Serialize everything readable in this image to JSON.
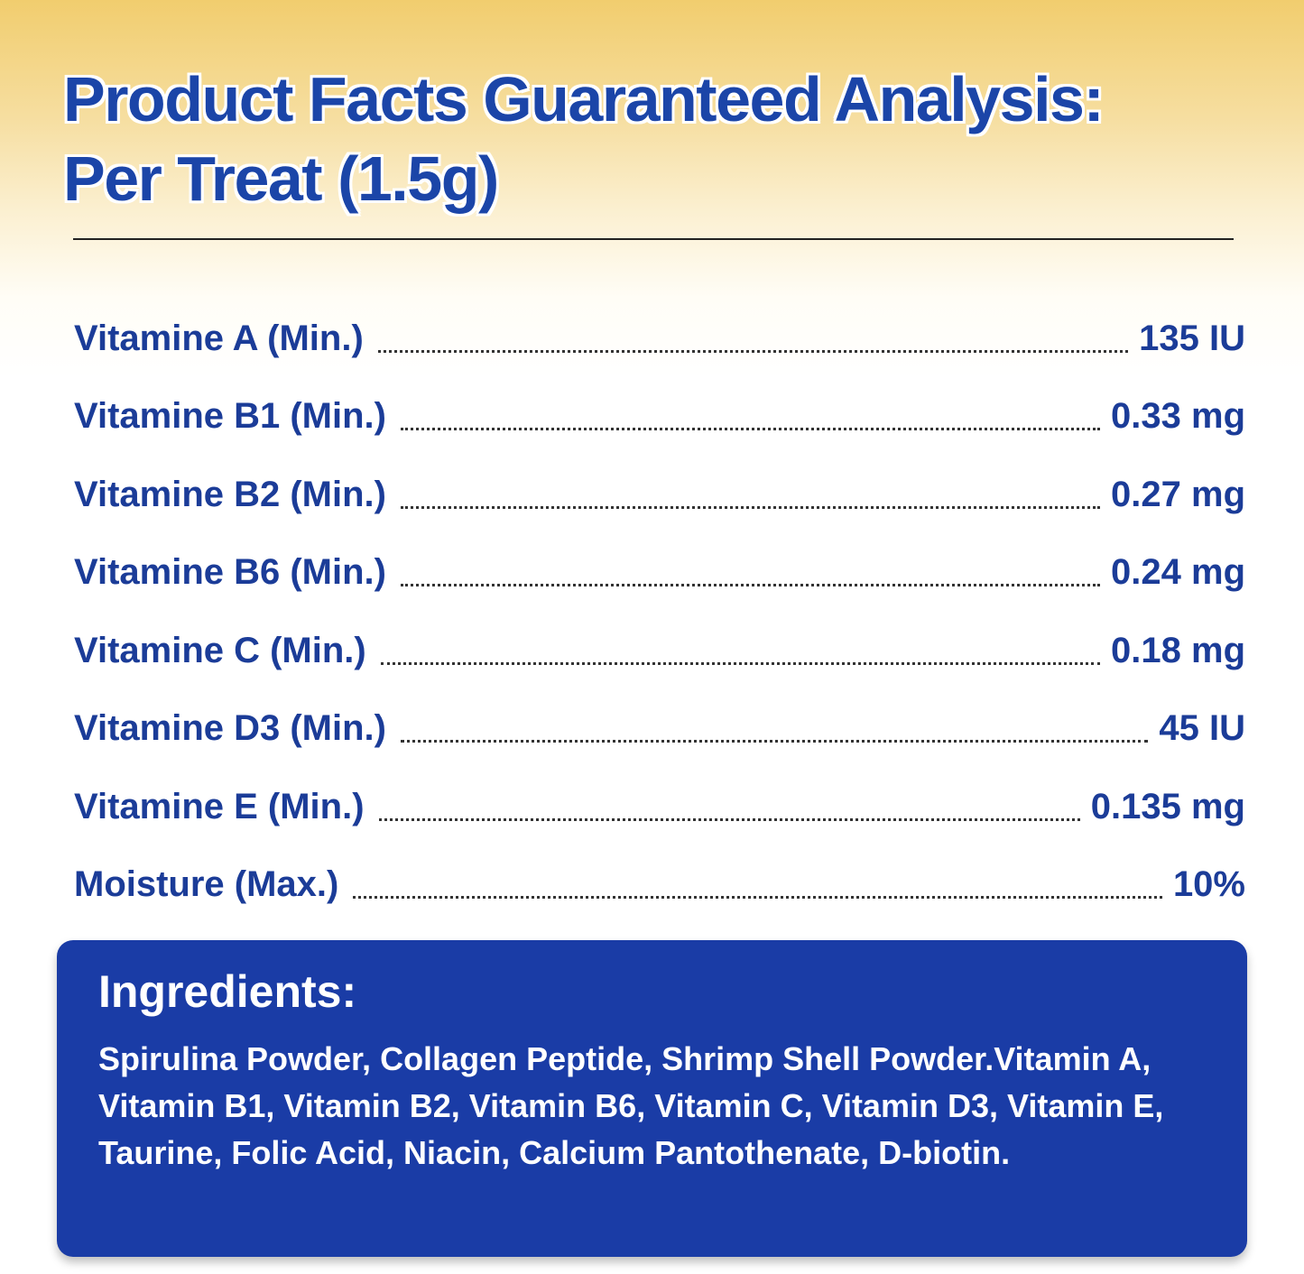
{
  "header": {
    "title_line1": "Product Facts Guaranteed Analysis:",
    "title_line2": "Per Treat (1.5g)"
  },
  "analysis": [
    {
      "label": "Vitamine A (Min.)",
      "value": "135 IU"
    },
    {
      "label": "Vitamine B1 (Min.)",
      "value": "0.33 mg"
    },
    {
      "label": "Vitamine B2 (Min.)",
      "value": "0.27 mg"
    },
    {
      "label": "Vitamine B6 (Min.)",
      "value": "0.24 mg"
    },
    {
      "label": "Vitamine C (Min.)",
      "value": "0.18 mg"
    },
    {
      "label": "Vitamine D3 (Min.)",
      "value": "45 IU"
    },
    {
      "label": "Vitamine E (Min.)",
      "value": "0.135 mg"
    },
    {
      "label": "Moisture (Max.)",
      "value": "10%"
    }
  ],
  "ingredients": {
    "heading": "Ingredients:",
    "text": "Spirulina Powder, Collagen Peptide, Shrimp Shell Powder.Vitamin A, Vitamin B1, Vitamin B2, Vitamin B6, Vitamin C, Vitamin D3, Vitamin E, Taurine, Folic Acid, Niacin, Calcium Pantothenate, D-biotin."
  },
  "colors": {
    "brand_blue": "#1b45a8",
    "box_blue": "#1a3ca6",
    "header_gold": "#f1cd6e"
  }
}
